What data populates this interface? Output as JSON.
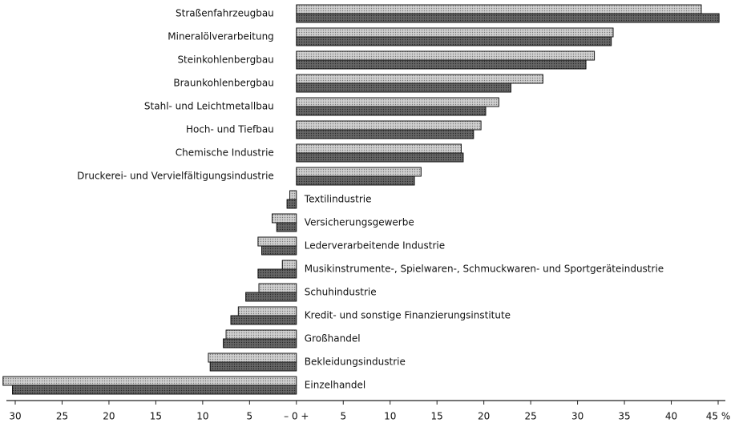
{
  "chart_data": {
    "type": "hbar",
    "categories": [
      "Straßenfahrzeugbau",
      "Mineralölverarbeitung",
      "Steinkohlenbergbau",
      "Braunkohlenbergbau",
      "Stahl- und Leichtmetallbau",
      "Hoch- und Tiefbau",
      "Chemische Industrie",
      "Druckerei- und Vervielfältigungsindustrie",
      "Textilindustrie",
      "Versicherungsgewerbe",
      "Lederverarbeitende Industrie",
      "Musikinstrumente-, Spielwaren-, Schmuckwaren- und Sportgeräteindustrie",
      "Schuhindustrie",
      "Kredit- und sonstige Finanzierungsinstitute",
      "Großhandel",
      "Bekleidungsindustrie",
      "Einzelhandel"
    ],
    "series": [
      {
        "color": "#d0d0d0",
        "values": [
          43.2,
          33.8,
          31.8,
          26.3,
          21.6,
          19.7,
          17.6,
          13.3,
          -0.7,
          -2.6,
          -4.1,
          -1.5,
          -4.0,
          -6.2,
          -7.5,
          -9.4,
          -31.3
        ]
      },
      {
        "color": "#666666",
        "values": [
          45.1,
          33.6,
          30.9,
          22.9,
          20.2,
          18.9,
          17.8,
          12.6,
          -1.0,
          -2.1,
          -3.7,
          -4.1,
          -5.4,
          -7.0,
          -7.8,
          -9.2,
          -30.3
        ]
      }
    ],
    "xlim": [
      -30,
      45
    ],
    "xticks": [
      {
        "value": -30,
        "label": "30"
      },
      {
        "value": -25,
        "label": "25"
      },
      {
        "value": -20,
        "label": "20"
      },
      {
        "value": -15,
        "label": "15"
      },
      {
        "value": -10,
        "label": "10"
      },
      {
        "value": -5,
        "label": "5"
      },
      {
        "value": 0,
        "label": "– 0 +"
      },
      5,
      10,
      15,
      20,
      25,
      30,
      35,
      40,
      {
        "value": 45,
        "label": "45 %"
      }
    ]
  }
}
